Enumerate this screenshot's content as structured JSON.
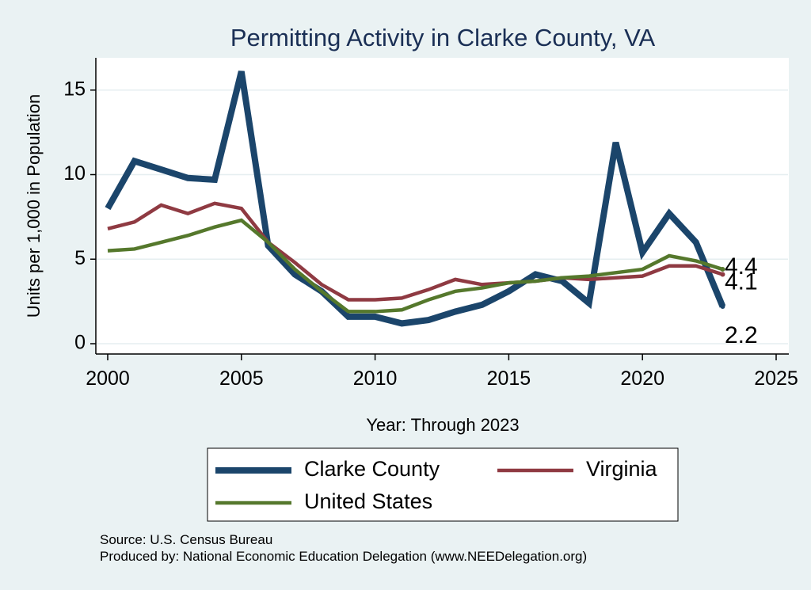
{
  "chart_data": {
    "type": "line",
    "title": "Permitting Activity in Clarke County, VA",
    "xlabel": "Year: Through 2023",
    "ylabel": "Units per 1,000 in Population",
    "xlim": [
      2000,
      2025
    ],
    "ylim": [
      0,
      16
    ],
    "x_ticks": [
      2000,
      2005,
      2010,
      2015,
      2020,
      2025
    ],
    "y_ticks": [
      0,
      5,
      10,
      15
    ],
    "grid": true,
    "legend_position": "bottom",
    "x": [
      2000,
      2001,
      2002,
      2003,
      2004,
      2005,
      2006,
      2007,
      2008,
      2009,
      2010,
      2011,
      2012,
      2013,
      2014,
      2015,
      2016,
      2017,
      2018,
      2019,
      2020,
      2021,
      2022,
      2023
    ],
    "series": [
      {
        "name": "Clarke County",
        "color": "#1b456b",
        "values": [
          8.0,
          10.8,
          10.3,
          9.8,
          9.7,
          16.1,
          5.8,
          4.1,
          3.1,
          1.6,
          1.6,
          1.2,
          1.4,
          1.9,
          2.3,
          3.1,
          4.1,
          3.7,
          2.4,
          11.9,
          5.4,
          7.7,
          6.0,
          2.2
        ],
        "end_label": "2.2"
      },
      {
        "name": "Virginia",
        "color": "#8f3a42",
        "values": [
          6.8,
          7.2,
          8.2,
          7.7,
          8.3,
          8.0,
          6.0,
          4.8,
          3.5,
          2.6,
          2.6,
          2.7,
          3.2,
          3.8,
          3.5,
          3.6,
          3.7,
          3.9,
          3.8,
          3.9,
          4.0,
          4.6,
          4.6,
          4.1
        ],
        "end_label": "4.1"
      },
      {
        "name": "United States",
        "color": "#55782c",
        "values": [
          5.5,
          5.6,
          6.0,
          6.4,
          6.9,
          7.3,
          6.0,
          4.4,
          3.1,
          1.9,
          1.9,
          2.0,
          2.6,
          3.1,
          3.3,
          3.6,
          3.7,
          3.9,
          4.0,
          4.2,
          4.4,
          5.2,
          4.9,
          4.4
        ],
        "end_label": "4.4"
      }
    ]
  },
  "footer": {
    "source": "Source: U.S. Census Bureau",
    "produced_by": "Produced by: National Economic Education Delegation (www.NEEDelegation.org)"
  }
}
